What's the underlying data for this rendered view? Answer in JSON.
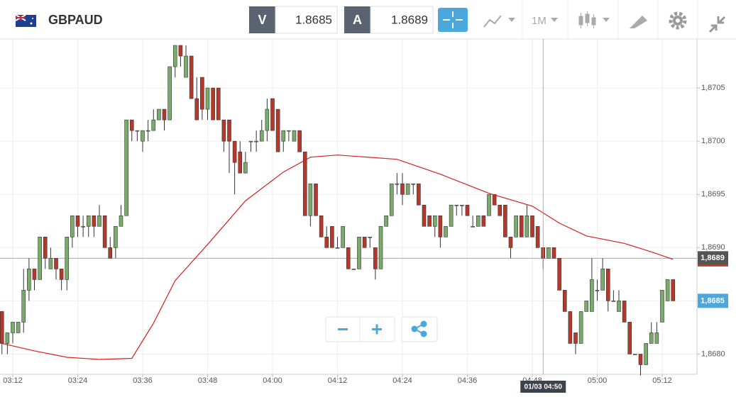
{
  "header": {
    "symbol": "GBPAUD",
    "bid_letter": "V",
    "bid": 1.8685,
    "ask_letter": "A",
    "ask": 1.8689,
    "timeframe": "1M"
  },
  "chart_data": {
    "type": "candlestick",
    "up_color": "#7aab6a",
    "down_color": "#b5382b",
    "grid": true,
    "xlim": [
      "03:10",
      "05:18"
    ],
    "ylim": [
      1.86781,
      1.87096
    ],
    "xticks": [
      "03:12",
      "03:24",
      "03:36",
      "03:48",
      "04:00",
      "04:12",
      "04:24",
      "04:36",
      "04:48",
      "05:00",
      "05:12"
    ],
    "yticks": [
      {
        "value": 1.868,
        "label": "1,8680"
      },
      {
        "value": 1.8685,
        "label": "1,8685"
      },
      {
        "value": 1.869,
        "label": "1,8690"
      },
      {
        "value": 1.8695,
        "label": "1,8695"
      },
      {
        "value": 1.87,
        "label": "1,8700"
      },
      {
        "value": 1.8705,
        "label": "1,8705"
      }
    ],
    "x": [
      "03:10",
      "03:11",
      "03:12",
      "03:13",
      "03:14",
      "03:15",
      "03:16",
      "03:17",
      "03:18",
      "03:19",
      "03:20",
      "03:21",
      "03:22",
      "03:23",
      "03:24",
      "03:25",
      "03:26",
      "03:27",
      "03:28",
      "03:29",
      "03:30",
      "03:31",
      "03:32",
      "03:33",
      "03:34",
      "03:35",
      "03:36",
      "03:37",
      "03:38",
      "03:39",
      "03:40",
      "03:41",
      "03:42",
      "03:43",
      "03:44",
      "03:45",
      "03:46",
      "03:47",
      "03:48",
      "03:49",
      "03:50",
      "03:51",
      "03:52",
      "03:53",
      "03:54",
      "03:55",
      "03:56",
      "03:57",
      "03:58",
      "03:59",
      "04:00",
      "04:01",
      "04:02",
      "04:03",
      "04:04",
      "04:05",
      "04:06",
      "04:07",
      "04:08",
      "04:09",
      "04:10",
      "04:11",
      "04:12",
      "04:13",
      "04:14",
      "04:15",
      "04:16",
      "04:17",
      "04:18",
      "04:19",
      "04:20",
      "04:21",
      "04:22",
      "04:23",
      "04:24",
      "04:25",
      "04:26",
      "04:27",
      "04:28",
      "04:29",
      "04:30",
      "04:31",
      "04:32",
      "04:33",
      "04:34",
      "04:35",
      "04:36",
      "04:37",
      "04:38",
      "04:39",
      "04:40",
      "04:41",
      "04:42",
      "04:43",
      "04:44",
      "04:45",
      "04:46",
      "04:47",
      "04:48",
      "04:49",
      "04:50",
      "04:51",
      "04:52",
      "04:53",
      "04:54",
      "04:55",
      "04:56",
      "04:57",
      "04:58",
      "04:59",
      "05:00",
      "05:01",
      "05:02",
      "05:03",
      "05:04",
      "05:05",
      "05:06",
      "05:07",
      "05:08",
      "05:09",
      "05:10",
      "05:11",
      "05:12",
      "05:13",
      "05:14"
    ],
    "ohlc": [
      [
        1.8684,
        1.8684,
        1.868,
        1.8681
      ],
      [
        1.8681,
        1.8682,
        1.868,
        1.8682
      ],
      [
        1.8682,
        1.8683,
        1.8681,
        1.8683
      ],
      [
        1.8682,
        1.8683,
        1.8682,
        1.8683
      ],
      [
        1.8683,
        1.8688,
        1.8682,
        1.8686
      ],
      [
        1.8686,
        1.8689,
        1.8685,
        1.8688
      ],
      [
        1.8688,
        1.8688,
        1.8686,
        1.8687
      ],
      [
        1.8687,
        1.8691,
        1.8687,
        1.8691
      ],
      [
        1.8691,
        1.8691,
        1.8688,
        1.8689
      ],
      [
        1.8688,
        1.869,
        1.8688,
        1.8689
      ],
      [
        1.8689,
        1.8689,
        1.8687,
        1.8688
      ],
      [
        1.8688,
        1.8688,
        1.8686,
        1.8687
      ],
      [
        1.8687,
        1.8691,
        1.8686,
        1.8691
      ],
      [
        1.8691,
        1.8693,
        1.869,
        1.8693
      ],
      [
        1.8693,
        1.8693,
        1.8691,
        1.8692
      ],
      [
        1.8692,
        1.8693,
        1.8691,
        1.8692
      ],
      [
        1.8692,
        1.8693,
        1.8691,
        1.8693
      ],
      [
        1.8693,
        1.8693,
        1.8691,
        1.8692
      ],
      [
        1.8692,
        1.8694,
        1.8692,
        1.8693
      ],
      [
        1.8693,
        1.8693,
        1.869,
        1.869
      ],
      [
        1.869,
        1.8691,
        1.8689,
        1.8689
      ],
      [
        1.869,
        1.8692,
        1.8689,
        1.8692
      ],
      [
        1.8692,
        1.8694,
        1.8692,
        1.8693
      ],
      [
        1.8693,
        1.8702,
        1.8693,
        1.8702
      ],
      [
        1.8702,
        1.8702,
        1.87,
        1.8701
      ],
      [
        1.8701,
        1.8701,
        1.87,
        1.8701
      ],
      [
        1.87,
        1.8701,
        1.8699,
        1.8701
      ],
      [
        1.8701,
        1.8702,
        1.87,
        1.8701
      ],
      [
        1.8701,
        1.8703,
        1.8701,
        1.8702
      ],
      [
        1.8702,
        1.8703,
        1.8702,
        1.8703
      ],
      [
        1.8703,
        1.8703,
        1.8701,
        1.8702
      ],
      [
        1.8702,
        1.8707,
        1.8702,
        1.8707
      ],
      [
        1.8707,
        1.8709,
        1.8706,
        1.8709
      ],
      [
        1.8709,
        1.8709,
        1.8707,
        1.8708
      ],
      [
        1.8706,
        1.8709,
        1.8706,
        1.8708
      ],
      [
        1.8708,
        1.8708,
        1.8704,
        1.8704
      ],
      [
        1.8704,
        1.8706,
        1.8702,
        1.8702
      ],
      [
        1.8706,
        1.8706,
        1.8702,
        1.8703
      ],
      [
        1.8703,
        1.8705,
        1.8702,
        1.8705
      ],
      [
        1.8705,
        1.8705,
        1.8702,
        1.8702
      ],
      [
        1.8705,
        1.8705,
        1.8702,
        1.8702
      ],
      [
        1.8702,
        1.8702,
        1.8699,
        1.87
      ],
      [
        1.8702,
        1.8702,
        1.8697,
        1.87
      ],
      [
        1.87,
        1.87,
        1.8695,
        1.8698
      ],
      [
        1.8699,
        1.87,
        1.8697,
        1.8697
      ],
      [
        1.8697,
        1.8699,
        1.8697,
        1.8698
      ],
      [
        1.87,
        1.87,
        1.8699,
        1.87
      ],
      [
        1.87,
        1.8701,
        1.8699,
        1.87
      ],
      [
        1.87,
        1.8702,
        1.87,
        1.8701
      ],
      [
        1.8701,
        1.8704,
        1.87,
        1.8703
      ],
      [
        1.8704,
        1.8704,
        1.8701,
        1.8701
      ],
      [
        1.8703,
        1.8703,
        1.8699,
        1.8699
      ],
      [
        1.87,
        1.8701,
        1.8699,
        1.8701
      ],
      [
        1.8701,
        1.8701,
        1.87,
        1.8701
      ],
      [
        1.87,
        1.8701,
        1.87,
        1.8701
      ],
      [
        1.8701,
        1.8701,
        1.8699,
        1.8699
      ],
      [
        1.8699,
        1.8699,
        1.8693,
        1.8693
      ],
      [
        1.8693,
        1.8696,
        1.8692,
        1.8696
      ],
      [
        1.8696,
        1.8696,
        1.8693,
        1.8693
      ],
      [
        1.8693,
        1.8693,
        1.8691,
        1.8691
      ],
      [
        1.8691,
        1.8692,
        1.869,
        1.869
      ],
      [
        1.8692,
        1.8692,
        1.869,
        1.869
      ],
      [
        1.869,
        1.8691,
        1.869,
        1.869
      ],
      [
        1.869,
        1.8692,
        1.869,
        1.8692
      ],
      [
        1.869,
        1.869,
        1.8688,
        1.8688
      ],
      [
        1.8688,
        1.8688,
        1.8688,
        1.8688
      ],
      [
        1.8688,
        1.8691,
        1.8688,
        1.8691
      ],
      [
        1.8691,
        1.8691,
        1.869,
        1.869
      ],
      [
        1.8691,
        1.8691,
        1.869,
        1.8691
      ],
      [
        1.869,
        1.869,
        1.8687,
        1.8688
      ],
      [
        1.8688,
        1.8692,
        1.8688,
        1.8692
      ],
      [
        1.8692,
        1.8693,
        1.8692,
        1.8693
      ],
      [
        1.8693,
        1.8696,
        1.8693,
        1.8696
      ],
      [
        1.8696,
        1.8697,
        1.8695,
        1.8696
      ],
      [
        1.8696,
        1.8697,
        1.8694,
        1.8695
      ],
      [
        1.8695,
        1.8696,
        1.8695,
        1.8696
      ],
      [
        1.8696,
        1.8696,
        1.8695,
        1.8696
      ],
      [
        1.8696,
        1.8696,
        1.8694,
        1.8694
      ],
      [
        1.8694,
        1.8694,
        1.8692,
        1.8692
      ],
      [
        1.8693,
        1.8693,
        1.8692,
        1.8692
      ],
      [
        1.8692,
        1.8693,
        1.8691,
        1.8693
      ],
      [
        1.8693,
        1.8693,
        1.869,
        1.8691
      ],
      [
        1.8691,
        1.8692,
        1.8691,
        1.8692
      ],
      [
        1.8692,
        1.8694,
        1.8692,
        1.8694
      ],
      [
        1.8694,
        1.8694,
        1.8693,
        1.8694
      ],
      [
        1.8694,
        1.8694,
        1.8693,
        1.8694
      ],
      [
        1.8694,
        1.8694,
        1.8693,
        1.8693
      ],
      [
        1.8692,
        1.8693,
        1.8692,
        1.8692
      ],
      [
        1.8692,
        1.8693,
        1.8692,
        1.8693
      ],
      [
        1.8693,
        1.8693,
        1.8692,
        1.8692
      ],
      [
        1.8693,
        1.8695,
        1.8693,
        1.8695
      ],
      [
        1.8695,
        1.8695,
        1.8694,
        1.8694
      ],
      [
        1.8694,
        1.8694,
        1.8693,
        1.8693
      ],
      [
        1.8694,
        1.8694,
        1.8691,
        1.8691
      ],
      [
        1.8691,
        1.8691,
        1.8689,
        1.869
      ],
      [
        1.8691,
        1.8693,
        1.8691,
        1.8693
      ],
      [
        1.8693,
        1.8693,
        1.8691,
        1.8691
      ],
      [
        1.8691,
        1.8694,
        1.8691,
        1.8693
      ],
      [
        1.8693,
        1.8693,
        1.8691,
        1.8691
      ],
      [
        1.8692,
        1.8692,
        1.869,
        1.869
      ],
      [
        1.869,
        1.869,
        1.8688,
        1.8689
      ],
      [
        1.8689,
        1.869,
        1.8689,
        1.869
      ],
      [
        1.869,
        1.869,
        1.8689,
        1.8689
      ],
      [
        1.8689,
        1.8689,
        1.8686,
        1.8686
      ],
      [
        1.8686,
        1.8686,
        1.8684,
        1.8684
      ],
      [
        1.8684,
        1.8684,
        1.8681,
        1.8681
      ],
      [
        1.8682,
        1.8682,
        1.868,
        1.8681
      ],
      [
        1.8681,
        1.8684,
        1.8681,
        1.8684
      ],
      [
        1.8684,
        1.8685,
        1.8684,
        1.8685
      ],
      [
        1.8684,
        1.8689,
        1.8684,
        1.8687
      ],
      [
        1.8686,
        1.8687,
        1.8685,
        1.8686
      ],
      [
        1.8686,
        1.8689,
        1.8686,
        1.8688
      ],
      [
        1.8688,
        1.8688,
        1.8684,
        1.8685
      ],
      [
        1.8685,
        1.8686,
        1.8685,
        1.8685
      ],
      [
        1.8684,
        1.8686,
        1.8684,
        1.8685
      ],
      [
        1.8685,
        1.8685,
        1.8683,
        1.8683
      ],
      [
        1.8683,
        1.8683,
        1.868,
        1.868
      ],
      [
        1.868,
        1.868,
        1.868,
        1.868
      ],
      [
        1.868,
        1.868,
        1.8678,
        1.8679
      ],
      [
        1.8679,
        1.8681,
        1.8679,
        1.8681
      ],
      [
        1.8681,
        1.8683,
        1.8681,
        1.8682
      ],
      [
        1.8681,
        1.8683,
        1.8681,
        1.8682
      ],
      [
        1.8683,
        1.8686,
        1.8683,
        1.8686
      ],
      [
        1.8685,
        1.8687,
        1.8685,
        1.8687
      ],
      [
        1.8687,
        1.8687,
        1.8685,
        1.8685
      ]
    ],
    "moving_average": {
      "color": "#d62020",
      "x": [
        "03:10",
        "03:16",
        "03:22",
        "03:28",
        "03:34",
        "03:38",
        "03:42",
        "03:48",
        "03:55",
        "04:02",
        "04:07",
        "04:12",
        "04:23",
        "04:31",
        "04:40",
        "04:48",
        "04:53",
        "04:58",
        "05:05",
        "05:10",
        "05:14"
      ],
      "values": [
        1.8681,
        1.86803,
        1.86797,
        1.86795,
        1.86796,
        1.86829,
        1.86869,
        1.86903,
        1.86944,
        1.86971,
        1.86985,
        1.86987,
        1.86983,
        1.86969,
        1.86951,
        1.86939,
        1.86923,
        1.86911,
        1.86904,
        1.86896,
        1.86889
      ]
    },
    "price_line": {
      "value": 1.8689,
      "label": "1,8689",
      "color": "#c0392b"
    },
    "bid_marker": {
      "value": 1.8685,
      "label": "1,8685",
      "color": "#4aa8dc"
    },
    "crosshair": {
      "label": "01/03 04:50"
    }
  }
}
